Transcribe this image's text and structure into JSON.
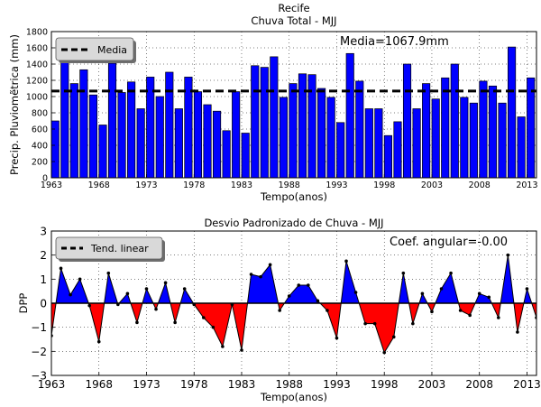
{
  "chart_data": [
    {
      "type": "bar",
      "title": "Recife",
      "subtitle": "Chuva Total - MJJ",
      "xlabel": "Tempo(anos)",
      "ylabel": "Precip. Pluviomẽtrica (mm)",
      "x": [
        1963,
        1964,
        1965,
        1966,
        1967,
        1968,
        1969,
        1970,
        1971,
        1972,
        1973,
        1974,
        1975,
        1976,
        1977,
        1978,
        1979,
        1980,
        1981,
        1982,
        1983,
        1984,
        1985,
        1986,
        1987,
        1988,
        1989,
        1990,
        1991,
        1992,
        1993,
        1994,
        1995,
        1996,
        1997,
        1998,
        1999,
        2000,
        2001,
        2002,
        2003,
        2004,
        2005,
        2006,
        2007,
        2008,
        2009,
        2010,
        2011,
        2012,
        2013,
        2014
      ],
      "values": [
        700,
        1460,
        1160,
        1330,
        1020,
        650,
        1410,
        1050,
        1180,
        850,
        1240,
        1000,
        1300,
        850,
        1240,
        1060,
        900,
        820,
        580,
        1060,
        550,
        1380,
        1360,
        1490,
        990,
        1160,
        1280,
        1270,
        1100,
        990,
        680,
        1530,
        1190,
        850,
        850,
        520,
        690,
        1400,
        850,
        1160,
        970,
        1230,
        1400,
        990,
        920,
        1190,
        1130,
        920,
        1610,
        750,
        1230,
        920
      ],
      "xlim": [
        1963,
        2014
      ],
      "ylim": [
        0,
        1800
      ],
      "xticks": [
        "1963",
        "1968",
        "1973",
        "1978",
        "1983",
        "1988",
        "1993",
        "1998",
        "2003",
        "2008",
        "2013"
      ],
      "yticks": [
        "0",
        "200",
        "400",
        "600",
        "800",
        "1000",
        "1200",
        "1400",
        "1600",
        "1800"
      ],
      "mean": 1067.9,
      "annotation": "Media=1067.9mm",
      "legend": "Media",
      "legend_position": "upper-left",
      "grid": true,
      "bar_color": "#0000ff"
    },
    {
      "type": "area",
      "title": "Desvio Padronizado de Chuva - MJJ",
      "xlabel": "Tempo(anos)",
      "ylabel": "DPP",
      "x": [
        1963,
        1964,
        1965,
        1966,
        1967,
        1968,
        1969,
        1970,
        1971,
        1972,
        1973,
        1974,
        1975,
        1976,
        1977,
        1978,
        1979,
        1980,
        1981,
        1982,
        1983,
        1984,
        1985,
        1986,
        1987,
        1988,
        1989,
        1990,
        1991,
        1992,
        1993,
        1994,
        1995,
        1996,
        1997,
        1998,
        1999,
        2000,
        2001,
        2002,
        2003,
        2004,
        2005,
        2006,
        2007,
        2008,
        2009,
        2010,
        2011,
        2012,
        2013,
        2014
      ],
      "values": [
        -1.35,
        1.45,
        0.35,
        1.0,
        -0.1,
        -1.6,
        1.25,
        -0.05,
        0.4,
        -0.8,
        0.6,
        -0.25,
        0.85,
        -0.8,
        0.6,
        -0.05,
        -0.6,
        -1.0,
        -1.8,
        -0.05,
        -1.95,
        1.2,
        1.1,
        1.6,
        -0.3,
        0.3,
        0.75,
        0.75,
        0.1,
        -0.3,
        -1.45,
        1.75,
        0.45,
        -0.85,
        -0.85,
        -2.05,
        -1.4,
        1.25,
        -0.85,
        0.4,
        -0.35,
        0.6,
        1.25,
        -0.3,
        -0.5,
        0.4,
        0.25,
        -0.6,
        2.0,
        -1.2,
        0.6,
        -0.6
      ],
      "xlim": [
        1963,
        2014
      ],
      "ylim": [
        -3,
        3
      ],
      "xticks": [
        "1963",
        "1968",
        "1973",
        "1978",
        "1983",
        "1988",
        "1993",
        "1998",
        "2003",
        "2008",
        "2013"
      ],
      "yticks": [
        "3",
        "2",
        "1",
        "0",
        "−1",
        "−2",
        "−3"
      ],
      "trend_slope": -0.0,
      "annotation": "Coef. angular=-0.00",
      "legend": "Tend. linear",
      "legend_position": "upper-left",
      "grid": true,
      "positive_color": "#0000ff",
      "negative_color": "#ff0000"
    }
  ]
}
